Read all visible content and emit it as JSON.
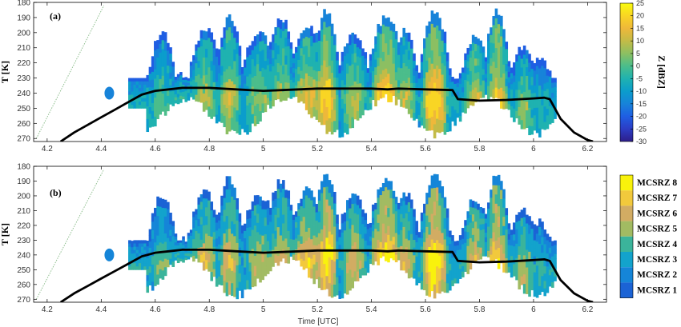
{
  "chart_data": [
    {
      "type": "heatmap",
      "panel_label": "(a)",
      "xlabel": "",
      "ylabel": "T [K]",
      "xlim": [
        4.15,
        6.27
      ],
      "ylim": [
        272,
        180
      ],
      "xticks": [
        "4.2",
        "4.4",
        "4.6",
        "4.8",
        "5",
        "5.2",
        "5.4",
        "5.6",
        "5.8",
        "6",
        "6.2"
      ],
      "yticks": [
        "180",
        "190",
        "200",
        "210",
        "220",
        "230",
        "240",
        "250",
        "260",
        "270"
      ],
      "colorbar": {
        "title": "Z [dBZ]",
        "min": -30,
        "max": 25,
        "ticks": [
          "25",
          "20",
          "15",
          "10",
          "5",
          "0",
          "-5",
          "-10",
          "-15",
          "-20",
          "-25",
          "-30"
        ]
      },
      "temperature_line": {
        "x": [
          4.25,
          4.3,
          4.35,
          4.4,
          4.45,
          4.5,
          4.55,
          4.6,
          4.65,
          4.7,
          4.8,
          4.9,
          5.0,
          5.07,
          5.2,
          5.3,
          5.4,
          5.46,
          5.5,
          5.6,
          5.7,
          5.72,
          5.8,
          5.9,
          6.0,
          6.04,
          6.06,
          6.1,
          6.15,
          6.2,
          6.22
        ],
        "y": [
          272,
          266,
          261,
          256,
          251,
          246,
          241,
          238.5,
          237.5,
          236.5,
          236.5,
          237.5,
          238.5,
          238,
          237,
          237,
          237,
          237.5,
          237,
          237.5,
          238,
          244,
          245,
          244.5,
          243.5,
          243,
          244,
          257,
          266,
          271,
          272
        ]
      }
    },
    {
      "type": "heatmap",
      "panel_label": "(b)",
      "xlabel": "Time [UTC]",
      "ylabel": "T [K]",
      "xlim": [
        4.15,
        6.27
      ],
      "ylim": [
        272,
        180
      ],
      "xticks": [
        "4.2",
        "4.4",
        "4.6",
        "4.8",
        "5",
        "5.2",
        "5.4",
        "5.6",
        "5.8",
        "6",
        "6.2"
      ],
      "yticks": [
        "180",
        "190",
        "200",
        "210",
        "220",
        "230",
        "240",
        "250",
        "260",
        "270"
      ],
      "legend": [
        {
          "name": "MCSRZ 8",
          "color": "#f9f20c"
        },
        {
          "name": "MCSRZ 7",
          "color": "#f2c93c"
        },
        {
          "name": "MCSRZ 6",
          "color": "#d2ac63"
        },
        {
          "name": "MCSRZ 5",
          "color": "#a2bb62"
        },
        {
          "name": "MCSRZ 4",
          "color": "#3bb49b"
        },
        {
          "name": "MCSRZ 3",
          "color": "#13a3cc"
        },
        {
          "name": "MCSRZ 2",
          "color": "#1585d8"
        },
        {
          "name": "MCSRZ 1",
          "color": "#1b63d5"
        }
      ]
    }
  ],
  "colors": {
    "zscale": [
      "#2d1e8a",
      "#2c3cc4",
      "#1f5ee3",
      "#1783d9",
      "#0b9dcc",
      "#1fb2b0",
      "#4bbd8b",
      "#8cbf62",
      "#c3bb47",
      "#eeb83a",
      "#f9d524",
      "#f9fb0e"
    ]
  }
}
